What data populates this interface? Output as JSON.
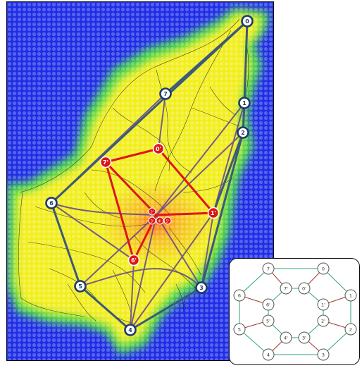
{
  "map": {
    "outer_nodes": [
      {
        "id": "n0",
        "label": "0"
      },
      {
        "id": "n1",
        "label": "1"
      },
      {
        "id": "n2",
        "label": "2"
      },
      {
        "id": "n3",
        "label": "3"
      },
      {
        "id": "n4",
        "label": "4"
      },
      {
        "id": "n5",
        "label": "5"
      },
      {
        "id": "n6",
        "label": "6"
      },
      {
        "id": "n7",
        "label": "7"
      }
    ],
    "inner_nodes": [
      {
        "id": "p0",
        "label": "0'"
      },
      {
        "id": "p1",
        "label": "1'"
      },
      {
        "id": "p6",
        "label": "6'"
      },
      {
        "id": "p7",
        "label": "7'"
      }
    ],
    "hub_nodes": [
      {
        "id": "h2",
        "label": "2'"
      },
      {
        "id": "h3",
        "label": "3'"
      },
      {
        "id": "h4",
        "label": "4'"
      },
      {
        "id": "h5",
        "label": "5'"
      }
    ],
    "colors": {
      "sea": "#1f2ee6",
      "land_low": "#3ad24a",
      "land_mid": "#f2ee1c",
      "land_high": "#f7a61e",
      "outer_edge": "#3b5a7a",
      "cross_edge": "#6a4d8c",
      "inner_edge": "#e01414",
      "node_fill": "#ffffff",
      "outer_node_stroke": "#1f3a6b",
      "inner_node_fill": "#e01414"
    }
  },
  "inset": {
    "outer_ring": [
      "0",
      "1",
      "2",
      "3",
      "4",
      "5",
      "6",
      "7"
    ],
    "inner_ring": [
      "0'",
      "1'",
      "2'",
      "3'",
      "4'",
      "5'",
      "6'",
      "7'"
    ],
    "colors": {
      "ring_edge": "#2aa86a",
      "spoke_edge": "#a13a2a",
      "node_stroke": "#555555"
    }
  }
}
